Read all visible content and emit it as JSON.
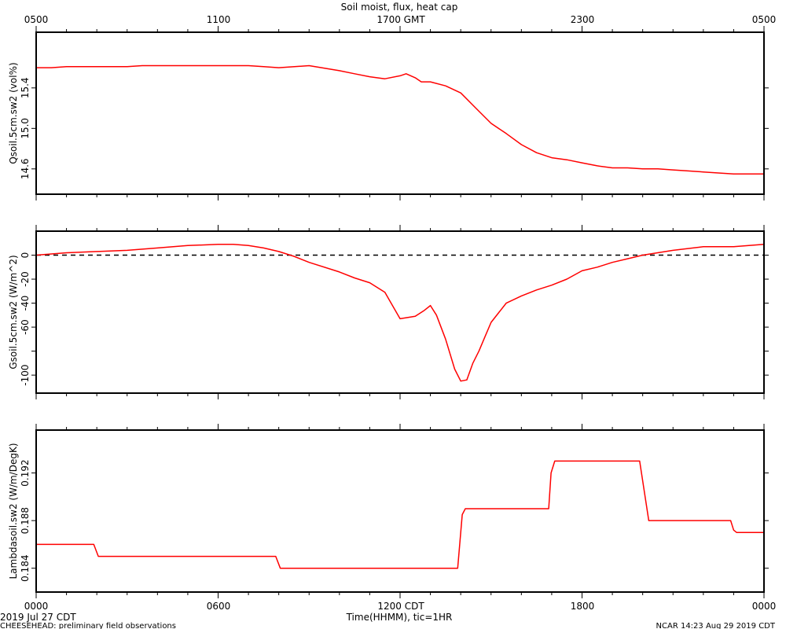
{
  "title": "Soil moist, flux, heat cap",
  "top_axis_ticks": [
    "0500",
    "1100",
    "1700 GMT",
    "2300",
    "0500"
  ],
  "bottom_axis_ticks": [
    "0000",
    "0600",
    "1200 CDT",
    "1800",
    "0000"
  ],
  "xlabel": "Time(HHMM), tic=1HR",
  "date_label": "2019 Jul 27 CDT",
  "footer_left": "CHEESEHEAD: preliminary field observations",
  "footer_right": "NCAR 14:23 Aug 29 2019 CDT",
  "colors": {
    "series": "#ff0000",
    "axes": "#000000",
    "zero_line": "#000000"
  },
  "chart_data": [
    {
      "type": "line",
      "ylabel": "Qsoil.5cm.sw2 (vol%)",
      "xlim": [
        0,
        24
      ],
      "ylim": [
        14.35,
        15.95
      ],
      "yticks": [
        14.6,
        15.0,
        15.4
      ],
      "ytick_labels": [
        "14.6",
        "15.0",
        "15.4"
      ],
      "series": [
        {
          "x": [
            0,
            0.5,
            1,
            2,
            3,
            3.5,
            4,
            5,
            6,
            7,
            7.5,
            8,
            9,
            10,
            10.5,
            11,
            11.5,
            12,
            12.2,
            12.5,
            12.7,
            13,
            13.5,
            14,
            14.5,
            15,
            15.5,
            16,
            16.5,
            17,
            17.5,
            18,
            18.5,
            19,
            19.5,
            20,
            20.5,
            21,
            21.5,
            22,
            23,
            23.5,
            24
          ],
          "y": [
            15.6,
            15.6,
            15.61,
            15.61,
            15.61,
            15.62,
            15.62,
            15.62,
            15.62,
            15.62,
            15.61,
            15.6,
            15.62,
            15.57,
            15.54,
            15.51,
            15.49,
            15.52,
            15.54,
            15.5,
            15.46,
            15.46,
            15.42,
            15.35,
            15.2,
            15.05,
            14.95,
            14.84,
            14.76,
            14.71,
            14.69,
            14.66,
            14.63,
            14.61,
            14.61,
            14.6,
            14.6,
            14.59,
            14.58,
            14.57,
            14.55,
            14.55,
            14.55
          ]
        }
      ]
    },
    {
      "type": "line",
      "ylabel": "Gsoil.5cm.sw2 (W/m^2)",
      "xlim": [
        0,
        24
      ],
      "ylim": [
        -115,
        20
      ],
      "yticks": [
        -100,
        -60,
        -40,
        -20,
        0
      ],
      "ytick_labels": [
        "-100",
        "-60",
        "-40",
        "-20",
        "0"
      ],
      "minor_yticks": [
        -80
      ],
      "reference_line": 0,
      "series": [
        {
          "x": [
            0,
            1,
            2,
            3,
            4,
            5,
            6,
            6.5,
            7,
            7.5,
            8,
            8.5,
            9,
            10,
            10.5,
            11,
            11.5,
            12,
            12.5,
            12.8,
            13,
            13.2,
            13.5,
            13.8,
            14,
            14.2,
            14.4,
            14.6,
            14.8,
            15,
            15.5,
            16,
            16.5,
            17,
            17.5,
            18,
            18.5,
            19,
            19.5,
            20,
            21,
            22,
            23,
            24
          ],
          "y": [
            0,
            2,
            3,
            4,
            6,
            8,
            9,
            9,
            8,
            6,
            3,
            -1,
            -6,
            -14,
            -19,
            -23,
            -31,
            -53,
            -51,
            -46,
            -42,
            -50,
            -70,
            -95,
            -105,
            -104,
            -90,
            -80,
            -68,
            -56,
            -40,
            -34,
            -29,
            -25,
            -20,
            -13,
            -10,
            -6,
            -3,
            0,
            4,
            7,
            7,
            9
          ]
        }
      ]
    },
    {
      "type": "line",
      "ylabel": "Lambdasoil.sw2 (W/m/DegK)",
      "xlim": [
        0,
        24
      ],
      "ylim": [
        0.182,
        0.1956
      ],
      "yticks": [
        0.184,
        0.188,
        0.192
      ],
      "ytick_labels": [
        "0.184",
        "0.188",
        "0.192"
      ],
      "series": [
        {
          "x": [
            0,
            1.9,
            2.05,
            7.9,
            8.05,
            13.9,
            14.05,
            14.15,
            16.9,
            16.98,
            17.1,
            19.9,
            20.2,
            22.9,
            23.0,
            23.1,
            24
          ],
          "y": [
            0.186,
            0.186,
            0.185,
            0.185,
            0.184,
            0.184,
            0.1885,
            0.189,
            0.189,
            0.192,
            0.193,
            0.193,
            0.188,
            0.188,
            0.1872,
            0.187,
            0.187
          ]
        }
      ]
    }
  ]
}
